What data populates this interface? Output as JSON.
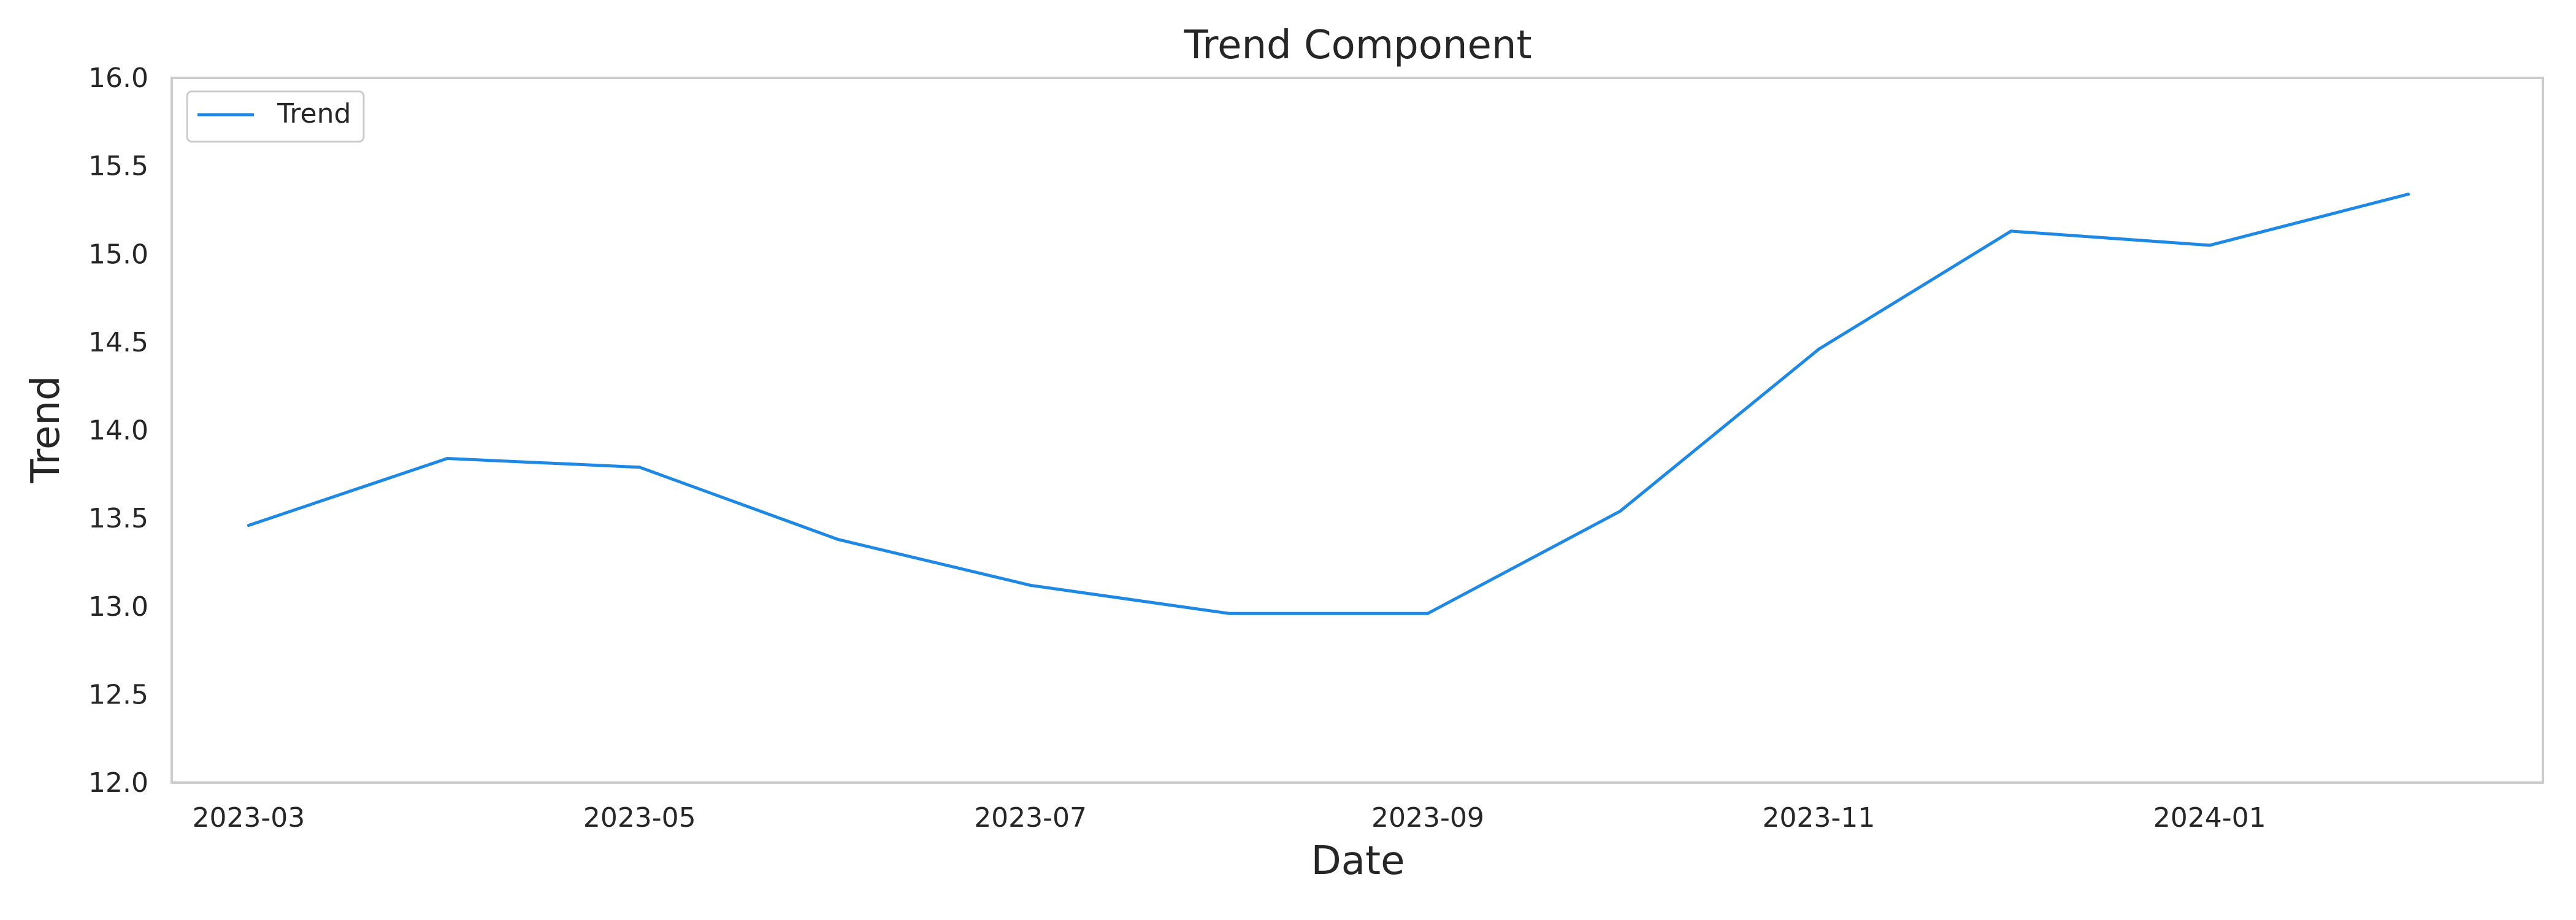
{
  "chart_data": {
    "type": "line",
    "title": "Trend Component",
    "xlabel": "Date",
    "ylabel": "Trend",
    "x": [
      "2023-03-01",
      "2023-04-01",
      "2023-05-01",
      "2023-06-01",
      "2023-07-01",
      "2023-08-01",
      "2023-09-01",
      "2023-10-01",
      "2023-11-01",
      "2023-12-01",
      "2024-01-01",
      "2024-02-01"
    ],
    "series": [
      {
        "name": "Trend",
        "color": "#1e88e5",
        "values": [
          13.46,
          13.84,
          13.79,
          13.38,
          13.12,
          12.96,
          12.96,
          13.54,
          14.46,
          15.13,
          15.05,
          15.34
        ]
      }
    ],
    "ylim": [
      12.0,
      16.0
    ],
    "xlim": [
      "2023-02-17",
      "2024-02-22"
    ],
    "y_ticks": [
      "12.0",
      "12.5",
      "13.0",
      "13.5",
      "14.0",
      "14.5",
      "15.0",
      "15.5",
      "16.0"
    ],
    "x_ticks": [
      {
        "date": "2023-03-01",
        "label": "2023-03"
      },
      {
        "date": "2023-05-01",
        "label": "2023-05"
      },
      {
        "date": "2023-07-01",
        "label": "2023-07"
      },
      {
        "date": "2023-09-01",
        "label": "2023-09"
      },
      {
        "date": "2023-11-01",
        "label": "2023-11"
      },
      {
        "date": "2024-01-01",
        "label": "2024-01"
      }
    ],
    "grid": false,
    "legend_position": "top-left",
    "frame_color": "#cccccc"
  }
}
